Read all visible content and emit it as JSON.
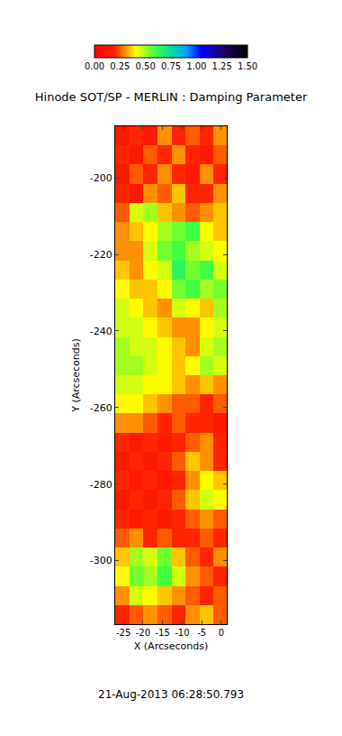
{
  "chart_data": {
    "type": "heatmap",
    "title": "Hinode SOT/SP - MERLIN : Damping Parameter",
    "x_label": "X (Arcseconds)",
    "y_label": "Y (Arcseconds)",
    "x": [
      -25.3,
      -21.7,
      -18.1,
      -14.5,
      -10.9,
      -7.3,
      -3.7,
      -0.1
    ],
    "y": [
      -189,
      -194,
      -199,
      -204,
      -209,
      -214,
      -219,
      -224,
      -229,
      -234,
      -239,
      -244,
      -249,
      -254,
      -259,
      -264,
      -269,
      -274,
      -279,
      -284,
      -289,
      -294,
      -299,
      -304,
      -309,
      -314
    ],
    "cells": [
      [
        0.15,
        0.2,
        0.15,
        0.3,
        0.2,
        0.25,
        0.2,
        0.3
      ],
      [
        0.2,
        0.15,
        0.25,
        0.2,
        0.3,
        0.2,
        0.15,
        0.25
      ],
      [
        0.15,
        0.25,
        0.2,
        0.3,
        0.2,
        0.15,
        0.3,
        0.2
      ],
      [
        0.2,
        0.15,
        0.3,
        0.25,
        0.35,
        0.2,
        0.2,
        0.3
      ],
      [
        0.25,
        0.45,
        0.5,
        0.35,
        0.3,
        0.25,
        0.3,
        0.35
      ],
      [
        0.3,
        0.35,
        0.4,
        0.5,
        0.55,
        0.6,
        0.4,
        0.35
      ],
      [
        0.3,
        0.3,
        0.45,
        0.55,
        0.6,
        0.5,
        0.45,
        0.4
      ],
      [
        0.35,
        0.3,
        0.4,
        0.45,
        0.65,
        0.55,
        0.6,
        0.45
      ],
      [
        0.4,
        0.35,
        0.35,
        0.4,
        0.55,
        0.6,
        0.5,
        0.55
      ],
      [
        0.45,
        0.4,
        0.35,
        0.3,
        0.45,
        0.4,
        0.35,
        0.5
      ],
      [
        0.45,
        0.45,
        0.4,
        0.35,
        0.3,
        0.3,
        0.4,
        0.45
      ],
      [
        0.5,
        0.45,
        0.45,
        0.4,
        0.35,
        0.3,
        0.45,
        0.5
      ],
      [
        0.5,
        0.5,
        0.45,
        0.4,
        0.35,
        0.4,
        0.5,
        0.45
      ],
      [
        0.45,
        0.45,
        0.4,
        0.4,
        0.35,
        0.3,
        0.35,
        0.3
      ],
      [
        0.4,
        0.4,
        0.35,
        0.3,
        0.25,
        0.25,
        0.2,
        0.25
      ],
      [
        0.3,
        0.3,
        0.25,
        0.2,
        0.25,
        0.2,
        0.2,
        0.15
      ],
      [
        0.2,
        0.15,
        0.2,
        0.15,
        0.2,
        0.25,
        0.3,
        0.2
      ],
      [
        0.15,
        0.2,
        0.15,
        0.2,
        0.25,
        0.35,
        0.3,
        0.2
      ],
      [
        0.2,
        0.15,
        0.2,
        0.15,
        0.2,
        0.3,
        0.4,
        0.35
      ],
      [
        0.15,
        0.2,
        0.15,
        0.2,
        0.25,
        0.35,
        0.45,
        0.4
      ],
      [
        0.2,
        0.15,
        0.2,
        0.15,
        0.2,
        0.25,
        0.3,
        0.25
      ],
      [
        0.25,
        0.3,
        0.2,
        0.25,
        0.2,
        0.2,
        0.25,
        0.2
      ],
      [
        0.35,
        0.5,
        0.45,
        0.55,
        0.35,
        0.25,
        0.2,
        0.3
      ],
      [
        0.4,
        0.55,
        0.5,
        0.6,
        0.45,
        0.3,
        0.25,
        0.2
      ],
      [
        0.3,
        0.45,
        0.4,
        0.35,
        0.3,
        0.25,
        0.2,
        0.25
      ],
      [
        0.2,
        0.25,
        0.3,
        0.25,
        0.2,
        0.3,
        0.35,
        0.25
      ]
    ],
    "xlim": [
      -27.1,
      1.4
    ],
    "ylim": [
      -316.6,
      -186.5
    ],
    "xticks": [
      -25,
      -20,
      -15,
      -10,
      -5,
      0
    ],
    "yticks": [
      -300,
      -280,
      -260,
      -240,
      -220,
      -200
    ],
    "colorbar": {
      "range": [
        0,
        1.5
      ],
      "ticks": [
        {
          "value": 0,
          "label": "0.00"
        },
        {
          "value": 0.25,
          "label": "0.25"
        },
        {
          "value": 0.5,
          "label": "0.50"
        },
        {
          "value": 0.75,
          "label": "0.75"
        },
        {
          "value": 1,
          "label": "1.00"
        },
        {
          "value": 1.25,
          "label": "1.25"
        },
        {
          "value": 1.5,
          "label": "1.50"
        }
      ]
    },
    "annotations": [
      {
        "text": "21-Aug-2013 06:28:50.793"
      }
    ]
  }
}
